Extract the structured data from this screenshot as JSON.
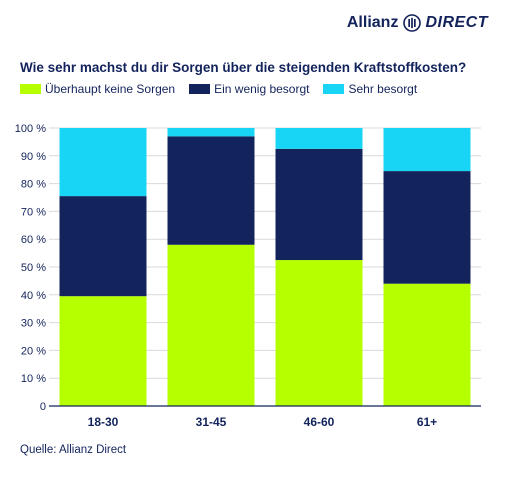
{
  "brand": {
    "name": "Allianz",
    "suffix": "DIRECT"
  },
  "colors": {
    "navy": "#13235b",
    "lime": "#b5ff00",
    "cyan": "#19d5f5",
    "grid": "#d9d9d9"
  },
  "chart_data": {
    "type": "bar",
    "stacked": true,
    "title": "Wie sehr machst du dir Sorgen über die steigenden Kraftstoffkosten?",
    "categories": [
      "18-30",
      "31-45",
      "46-60",
      "61+"
    ],
    "series": [
      {
        "name": "Überhaupt keine Sorgen",
        "color": "#b5ff00",
        "values": [
          39.5,
          58,
          52.5,
          44
        ]
      },
      {
        "name": "Ein wenig besorgt",
        "color": "#13235b",
        "values": [
          36,
          39,
          40,
          40.5
        ]
      },
      {
        "name": "Sehr besorgt",
        "color": "#19d5f5",
        "values": [
          24.5,
          3,
          7.5,
          15.5
        ]
      }
    ],
    "ylim": [
      0,
      100
    ],
    "yticks": [
      "0",
      "10 %",
      "20 %",
      "30 %",
      "40 %",
      "50 %",
      "60 %",
      "70 %",
      "80 %",
      "90 %",
      "100 %"
    ],
    "grid": true,
    "legend_position": "top-left"
  },
  "source": "Quelle: Allianz Direct"
}
